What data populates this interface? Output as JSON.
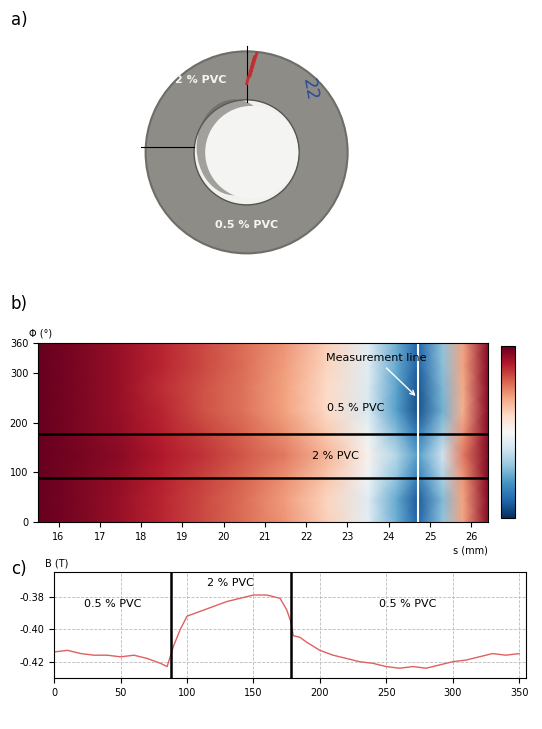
{
  "chart_data": [
    {
      "type": "image",
      "panel": "a)",
      "texts": {
        "top": "2 % PVC",
        "bottom": "0.5 % PVC",
        "marking": "22"
      }
    },
    {
      "type": "heatmap",
      "panel": "b)",
      "xlabel": "s (mm)",
      "ylabel": "Φ (°)",
      "x": [
        15.5,
        16.5,
        17.5,
        18.5,
        19.5,
        20.5,
        21.5,
        22.5,
        23.5,
        24.2,
        24.7,
        25.3,
        25.8,
        26.4
      ],
      "y": [
        0,
        45,
        90,
        135,
        180,
        225,
        270,
        315,
        360
      ],
      "cells": [
        [
          1.0,
          0.97,
          0.93,
          0.88,
          0.83,
          0.78,
          0.72,
          0.62,
          0.45,
          0.25,
          0.1,
          0.3,
          0.7,
          0.95
        ],
        [
          1.0,
          0.97,
          0.93,
          0.88,
          0.83,
          0.78,
          0.71,
          0.61,
          0.44,
          0.24,
          0.08,
          0.28,
          0.7,
          0.95
        ],
        [
          1.0,
          0.97,
          0.94,
          0.89,
          0.84,
          0.79,
          0.73,
          0.64,
          0.48,
          0.3,
          0.16,
          0.34,
          0.72,
          0.96
        ],
        [
          1.0,
          0.98,
          0.95,
          0.9,
          0.86,
          0.81,
          0.76,
          0.67,
          0.52,
          0.35,
          0.22,
          0.4,
          0.76,
          0.96
        ],
        [
          1.0,
          0.97,
          0.94,
          0.89,
          0.84,
          0.79,
          0.73,
          0.63,
          0.47,
          0.28,
          0.14,
          0.32,
          0.72,
          0.95
        ],
        [
          1.0,
          0.97,
          0.93,
          0.88,
          0.82,
          0.77,
          0.7,
          0.6,
          0.42,
          0.22,
          0.06,
          0.26,
          0.68,
          0.95
        ],
        [
          1.0,
          0.97,
          0.93,
          0.87,
          0.82,
          0.77,
          0.7,
          0.6,
          0.43,
          0.23,
          0.07,
          0.27,
          0.69,
          0.95
        ],
        [
          1.0,
          0.97,
          0.93,
          0.88,
          0.83,
          0.78,
          0.71,
          0.61,
          0.44,
          0.24,
          0.09,
          0.29,
          0.7,
          0.95
        ],
        [
          1.0,
          0.97,
          0.93,
          0.88,
          0.83,
          0.78,
          0.72,
          0.62,
          0.45,
          0.25,
          0.1,
          0.3,
          0.7,
          0.95
        ]
      ],
      "colorbar_range": [
        0,
        1
      ],
      "xlim": [
        15.5,
        26.4
      ],
      "xticks": [
        16,
        17,
        18,
        19,
        20,
        21,
        22,
        23,
        24,
        25,
        26
      ],
      "ylim": [
        0,
        360
      ],
      "yticks": [
        0,
        100,
        200,
        300,
        360
      ],
      "boundaries": [
        88,
        178
      ],
      "measurement_line": 24.7,
      "annotation": "Measurement line",
      "region_labels": [
        "0.5 % PVC",
        "2 % PVC"
      ]
    },
    {
      "type": "line",
      "panel": "c)",
      "ylabel": "B (T)",
      "color": "#e06060",
      "grid": true,
      "x": [
        0,
        10,
        20,
        30,
        40,
        50,
        60,
        70,
        80,
        85,
        90,
        95,
        100,
        110,
        120,
        130,
        140,
        150,
        160,
        170,
        175,
        178,
        180,
        185,
        190,
        200,
        210,
        220,
        230,
        240,
        250,
        260,
        270,
        280,
        290,
        300,
        310,
        320,
        330,
        340,
        350
      ],
      "values": [
        -0.414,
        -0.413,
        -0.415,
        -0.416,
        -0.416,
        -0.417,
        -0.416,
        -0.418,
        -0.421,
        -0.423,
        -0.41,
        -0.4,
        -0.392,
        -0.389,
        -0.386,
        -0.383,
        -0.381,
        -0.379,
        -0.379,
        -0.381,
        -0.388,
        -0.395,
        -0.404,
        -0.405,
        -0.408,
        -0.413,
        -0.416,
        -0.418,
        -0.42,
        -0.421,
        -0.423,
        -0.424,
        -0.423,
        -0.424,
        -0.422,
        -0.42,
        -0.419,
        -0.417,
        -0.415,
        -0.416,
        -0.415
      ],
      "xlim": [
        0,
        355
      ],
      "xticks": [
        0,
        50,
        100,
        150,
        200,
        250,
        300,
        350
      ],
      "ylim": [
        -0.43,
        -0.365
      ],
      "yticks": [
        -0.38,
        {
          "value": -0.4,
          "label": "-0.40"
        },
        -0.42
      ],
      "boundaries": [
        88,
        178
      ],
      "region_labels": [
        "0.5 % PVC",
        "2 % PVC",
        "0.5 % PVC"
      ]
    }
  ]
}
